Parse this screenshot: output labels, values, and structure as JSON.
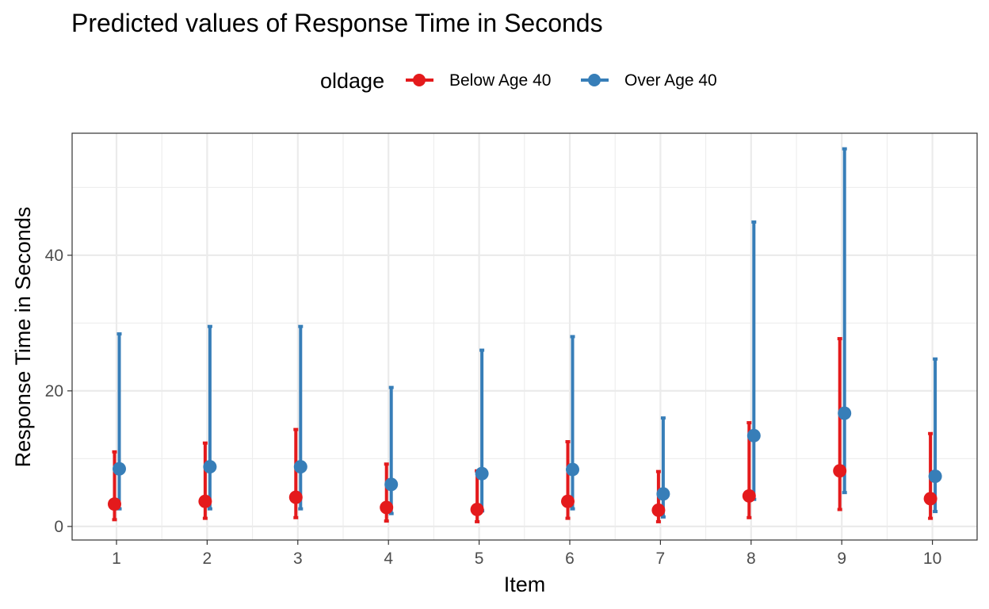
{
  "chart_data": {
    "type": "scatter",
    "title": "Predicted values of Response Time in Seconds",
    "xlabel": "Item",
    "ylabel": "Response Time in Seconds",
    "categories": [
      "1",
      "2",
      "3",
      "4",
      "5",
      "6",
      "7",
      "8",
      "9",
      "10"
    ],
    "y_ticks": [
      "0",
      "20",
      "40"
    ],
    "ylim": [
      -2,
      58
    ],
    "grid": true,
    "legend": {
      "title": "oldage",
      "placement": "top"
    },
    "series": [
      {
        "name": "Below Age 40",
        "color": "#e41a1c",
        "values": [
          3.3,
          3.7,
          4.3,
          2.8,
          2.5,
          3.7,
          2.4,
          4.5,
          8.2,
          4.1
        ],
        "lower": [
          1.0,
          1.2,
          1.3,
          0.8,
          0.7,
          1.2,
          0.7,
          1.3,
          2.5,
          1.2
        ],
        "upper": [
          11.0,
          12.3,
          14.3,
          9.2,
          8.2,
          12.5,
          8.1,
          15.3,
          27.7,
          13.7
        ]
      },
      {
        "name": "Over Age 40",
        "color": "#377eb8",
        "values": [
          8.5,
          8.8,
          8.8,
          6.2,
          7.8,
          8.4,
          4.8,
          13.4,
          16.7,
          7.4
        ],
        "lower": [
          2.6,
          2.6,
          2.6,
          1.9,
          2.3,
          2.6,
          1.4,
          4.0,
          5.0,
          2.2
        ],
        "upper": [
          28.4,
          29.5,
          29.5,
          20.5,
          26.0,
          28.0,
          16.0,
          44.9,
          55.7,
          24.7
        ]
      }
    ]
  }
}
